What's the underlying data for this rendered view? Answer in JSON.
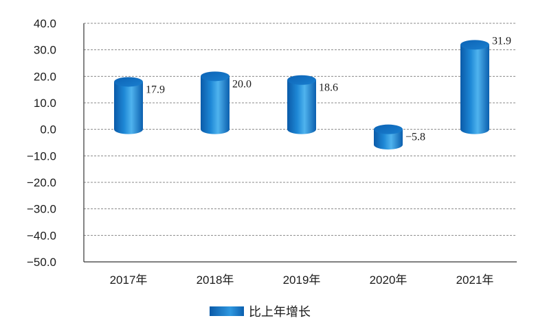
{
  "chart_data": {
    "type": "bar",
    "style": "3d-cylinder",
    "categories": [
      "2017年",
      "2018年",
      "2019年",
      "2020年",
      "2021年"
    ],
    "series": [
      {
        "name": "比上年增长",
        "values": [
          17.9,
          20.0,
          18.6,
          -5.8,
          31.9
        ]
      }
    ],
    "data_labels": [
      "17.9",
      "20.0",
      "18.6",
      "−5.8",
      "31.9"
    ],
    "yticks": [
      "40.0",
      "30.0",
      "20.0",
      "10.0",
      "0.0",
      "−10.0",
      "−20.0",
      "−30.0",
      "−40.0",
      "−50.0"
    ],
    "ylim": [
      -50,
      40
    ],
    "ystep": 10,
    "grid": true,
    "legend_position": "bottom-center",
    "colors": {
      "bar_dark": "#0a5aa8",
      "bar_mid": "#1e88d6",
      "bar_light": "#4fb3ee",
      "bar_top": "#0f6cbf",
      "axis": "#333333",
      "grid": "#888888"
    }
  }
}
